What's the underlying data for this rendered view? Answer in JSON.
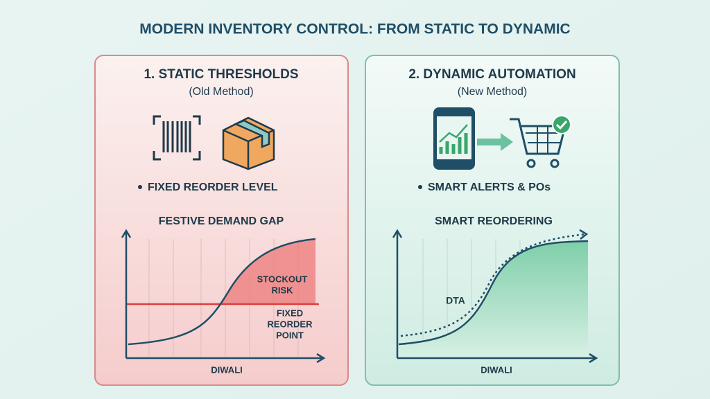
{
  "title": "MODERN INVENTORY CONTROL: FROM STATIC TO DYNAMIC",
  "panels": [
    {
      "heading": "1. STATIC THRESHOLDS",
      "subheading": "(Old Method)",
      "bullet": "FIXED REORDER LEVEL",
      "chart_title": "FESTIVE DEMAND GAP",
      "annotations": [
        {
          "lines": [
            "STOCKOUT",
            "RISK"
          ]
        },
        {
          "lines": [
            "FIXED",
            "REORDER",
            "POINT"
          ]
        }
      ],
      "x_label": "DIWALI"
    },
    {
      "heading": "2. DYNAMIC AUTOMATION",
      "subheading": "(New Method)",
      "bullet": "SMART ALERTS & POs",
      "chart_title": "SMART REORDERING",
      "annotations": [
        {
          "lines": [
            "DTA"
          ]
        }
      ],
      "x_label": "DIWALI"
    }
  ]
}
